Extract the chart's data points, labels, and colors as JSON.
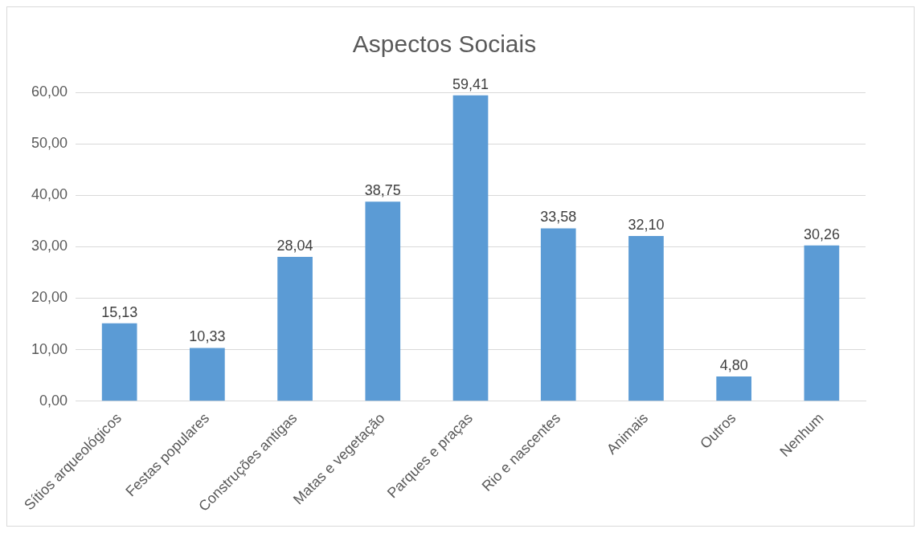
{
  "chart_data": {
    "type": "bar",
    "title": "Aspectos Sociais",
    "categories": [
      "Sítios arqueológicos",
      "Festas populares",
      "Construções antigas",
      "Matas e vegetação",
      "Parques e praças",
      "Rio e nascentes",
      "Animais",
      "Outros",
      "Nenhum"
    ],
    "values": [
      15.13,
      10.33,
      28.04,
      38.75,
      59.41,
      33.58,
      32.1,
      4.8,
      30.26
    ],
    "value_labels": [
      "15,13",
      "10,33",
      "28,04",
      "38,75",
      "59,41",
      "33,58",
      "32,10",
      "4,80",
      "30,26"
    ],
    "color": "#5b9bd5",
    "ylim": [
      0,
      60
    ],
    "yticks": [
      {
        "value": 0,
        "label": "0,00"
      },
      {
        "value": 10,
        "label": "10,00"
      },
      {
        "value": 20,
        "label": "20,00"
      },
      {
        "value": 30,
        "label": "30,00"
      },
      {
        "value": 40,
        "label": "40,00"
      },
      {
        "value": 50,
        "label": "50,00"
      },
      {
        "value": 60,
        "label": "60,00"
      }
    ],
    "grid": "y",
    "legend": false
  }
}
